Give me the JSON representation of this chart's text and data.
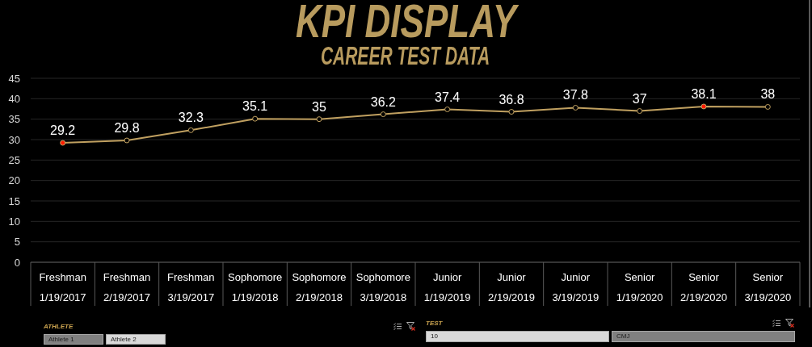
{
  "chart_data": {
    "type": "line",
    "title": "KPI DISPLAY",
    "subtitle": "CAREER TEST DATA",
    "categories": [
      "Freshman\n1/19/2017",
      "Freshman\n2/19/2017",
      "Freshman\n3/19/2017",
      "Sophomore\n1/19/2018",
      "Sophomore\n2/19/2018",
      "Sophomore\n3/19/2018",
      "Junior\n1/19/2019",
      "Junior\n2/19/2019",
      "Junior\n3/19/2019",
      "Senior\n1/19/2020",
      "Senior\n2/19/2020",
      "Senior\n3/19/2020"
    ],
    "values": [
      29.2,
      29.8,
      32.3,
      35.1,
      35,
      36.2,
      37.4,
      36.8,
      37.8,
      37,
      38.1,
      38
    ],
    "color": "#c0a060",
    "colors": [
      "#ff1a00",
      "#000000",
      "#000000",
      "#000000",
      "#000000",
      "#000000",
      "#000000",
      "#000000",
      "#000000",
      "#000000",
      "#ff1a00",
      "#000000"
    ],
    "ylim": [
      0,
      45
    ],
    "yticks": [
      0,
      5,
      10,
      15,
      20,
      25,
      30,
      35,
      40,
      45
    ],
    "grid": "y",
    "marker": "circle",
    "line_style": "solid",
    "data_labels": true,
    "annotations": [
      "ATHLETE",
      "Athlete 1",
      "Athlete 2",
      "TEST",
      "10",
      "CMJ"
    ]
  }
}
